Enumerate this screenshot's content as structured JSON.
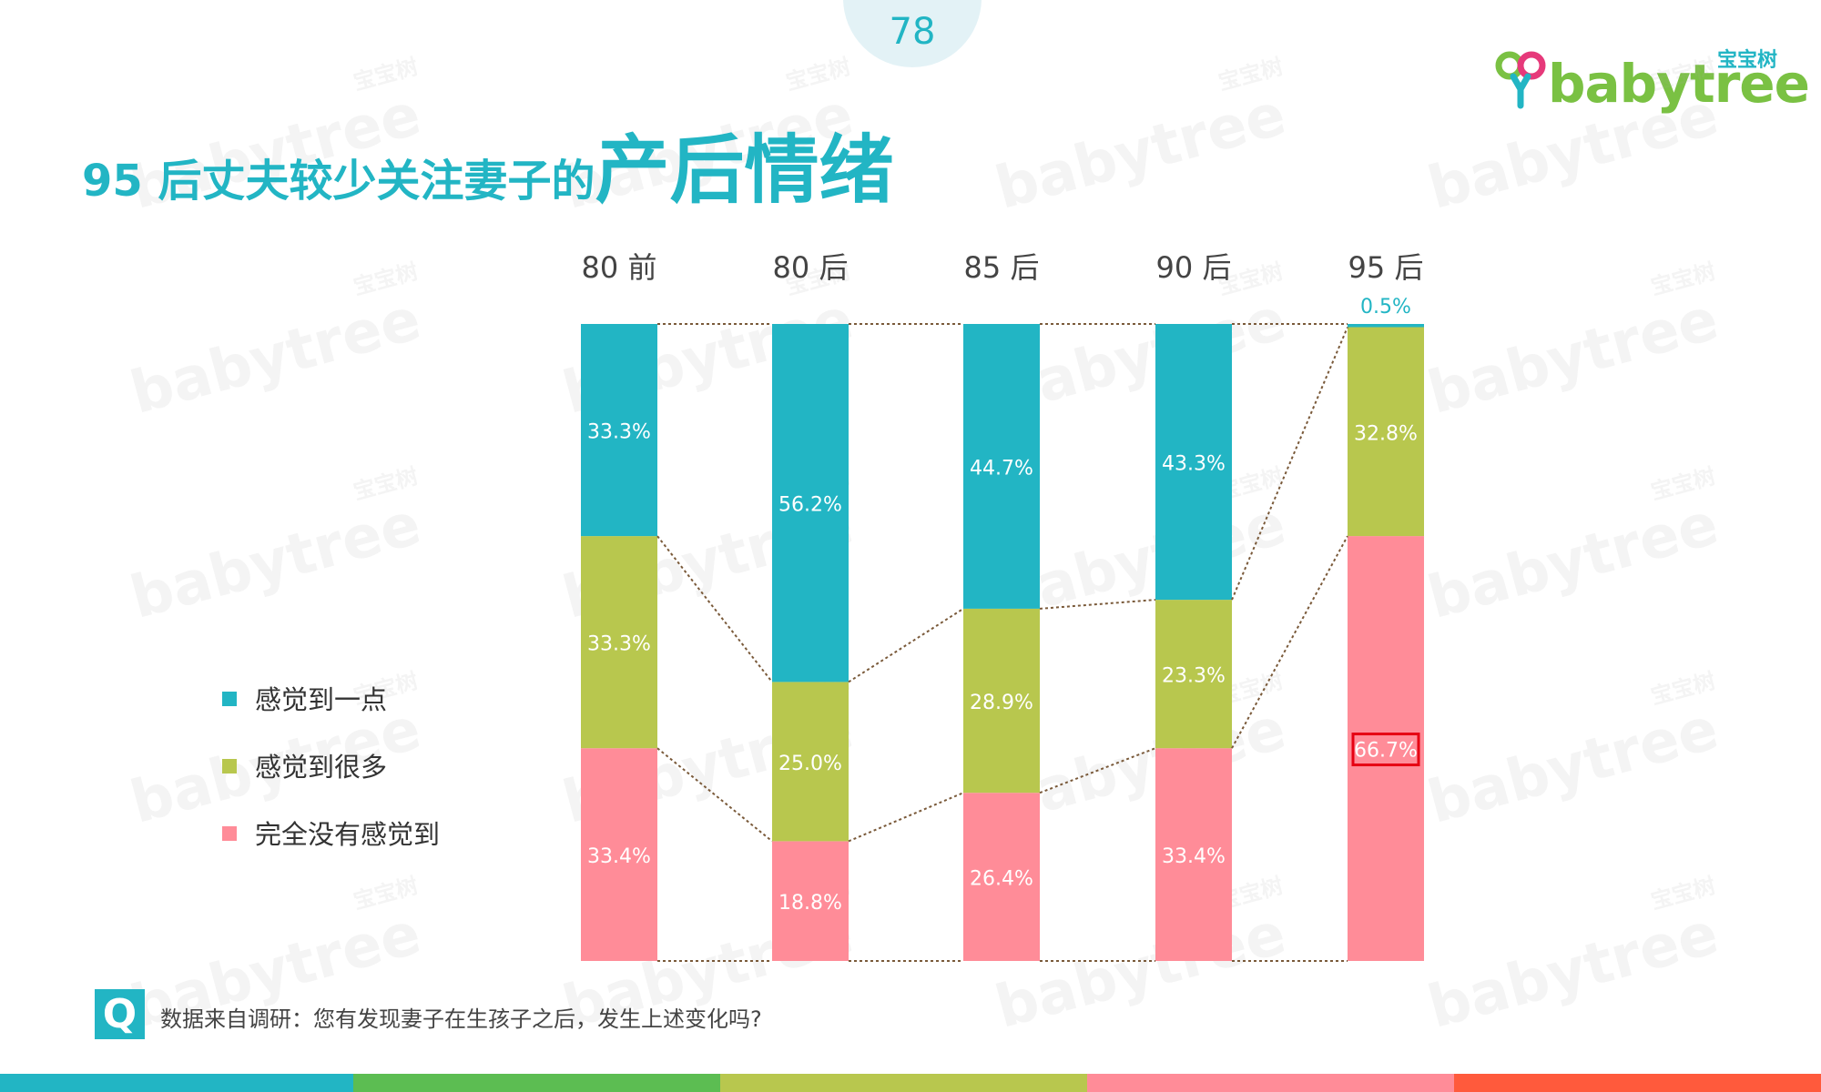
{
  "page": {
    "number": "78"
  },
  "logo": {
    "cn": "宝宝树",
    "en": "babytree"
  },
  "title": {
    "lead": "95 后丈夫较少关注妻子的",
    "emphasis": "产后情绪"
  },
  "watermark": {
    "cn": "宝宝树",
    "en": "babytree"
  },
  "colors": {
    "teal": "#22b5c4",
    "olive": "#b8c74e",
    "pink": "#ff8c98",
    "bar_strip": [
      "#22b5c4",
      "#5cbd52",
      "#b8c74e",
      "#ff8c98",
      "#ff5a3c"
    ]
  },
  "chart_data": {
    "type": "bar",
    "stacked": true,
    "percent": true,
    "categories": [
      "80 前",
      "80 后",
      "85 后",
      "90 后",
      "95 后"
    ],
    "series": [
      {
        "name": "感觉到一点",
        "color": "#22b5c4",
        "values": [
          33.3,
          56.2,
          44.7,
          43.3,
          0.5
        ]
      },
      {
        "name": "感觉到很多",
        "color": "#b8c74e",
        "values": [
          33.3,
          25.0,
          28.9,
          23.3,
          32.8
        ]
      },
      {
        "name": "完全没有感觉到",
        "color": "#ff8c98",
        "values": [
          33.4,
          18.8,
          26.4,
          33.4,
          66.7
        ]
      }
    ],
    "labels": [
      [
        "33.3%",
        "56.2%",
        "44.7%",
        "43.3%",
        "0.5%"
      ],
      [
        "33.3%",
        "25.0%",
        "28.9%",
        "23.3%",
        "32.8%"
      ],
      [
        "33.4%",
        "18.8%",
        "26.4%",
        "33.4%",
        "66.7%"
      ]
    ],
    "highlight": {
      "series": 2,
      "category": 4
    },
    "ylim": [
      0,
      100
    ],
    "legend": "left",
    "series_lines": true
  },
  "footer": {
    "q_icon": "Q",
    "note": "数据来自调研：您有发现妻子在生孩子之后，发生上述变化吗?"
  }
}
